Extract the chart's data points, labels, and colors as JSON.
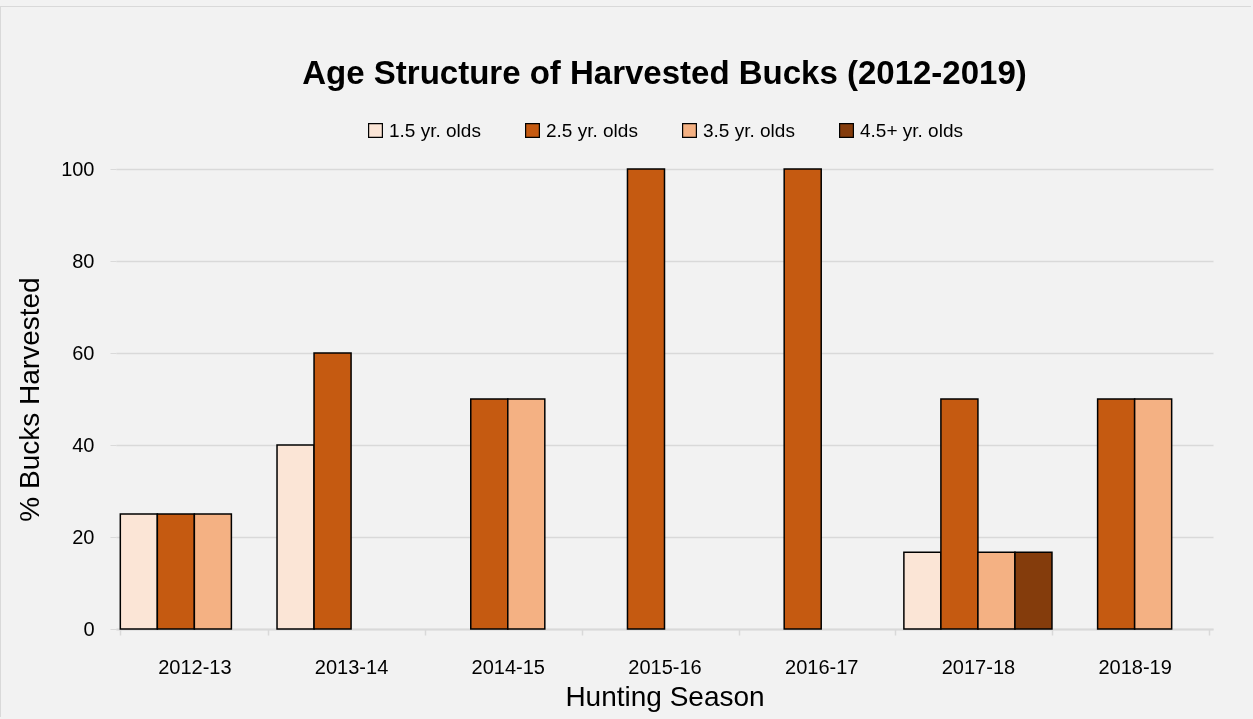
{
  "chart_data": {
    "type": "bar",
    "title": "Age Structure of Harvested Bucks (2012-2019)",
    "xlabel": "Hunting Season",
    "ylabel": "% Bucks Harvested",
    "categories": [
      "2012-13",
      "2013-14",
      "2014-15",
      "2015-16",
      "2016-17",
      "2017-18",
      "2018-19"
    ],
    "series": [
      {
        "name": "1.5 yr. olds",
        "color": "#fbe5d6",
        "values": [
          25,
          40,
          null,
          null,
          null,
          16.7,
          null
        ]
      },
      {
        "name": "2.5 yr. olds",
        "color": "#c55a11",
        "values": [
          25,
          60,
          50,
          100,
          100,
          50,
          50
        ]
      },
      {
        "name": "3.5 yr. olds",
        "color": "#f4b183",
        "values": [
          25,
          null,
          50,
          null,
          null,
          16.7,
          50
        ]
      },
      {
        "name": "4.5+ yr. olds",
        "color": "#843c0c",
        "values": [
          null,
          null,
          null,
          null,
          null,
          16.7,
          null
        ]
      }
    ],
    "ylim": [
      0,
      100
    ],
    "yticks": [
      0,
      20,
      40,
      60,
      80,
      100
    ],
    "grid": "y",
    "legend": "top"
  }
}
